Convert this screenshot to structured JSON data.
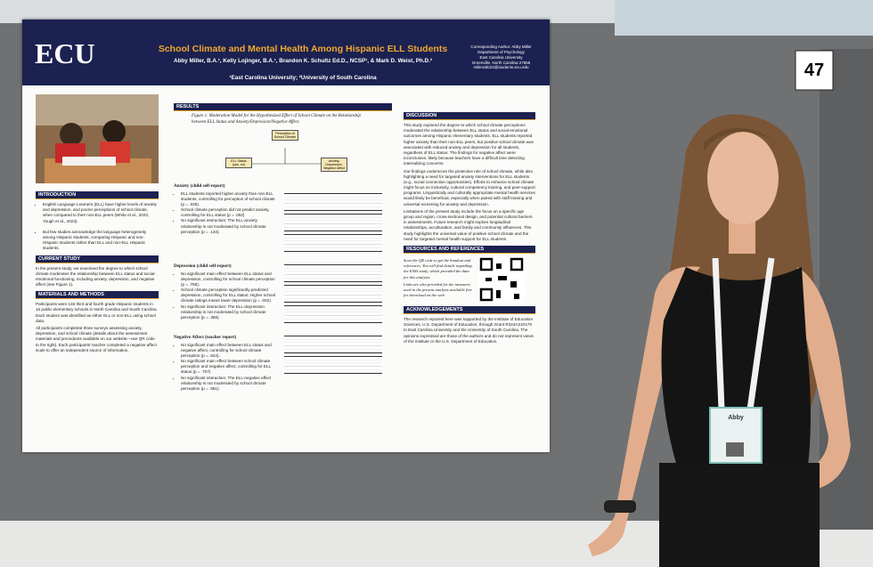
{
  "board_number": "47",
  "poster": {
    "logo": "ECU",
    "title": "School Climate and Mental Health Among Hispanic ELL Students",
    "authors": "Abby Miller, B.A.¹, Kelly Lojinger, B.A.¹, Brandon K. Schultz Ed.D., NCSP¹, & Mark D. Weist, Ph.D.²",
    "affiliations": "¹East Carolina University; ²University of South Carolina",
    "contact": [
      "Corresponding Author: Abby Miller",
      "Department of Psychology",
      "East Carolina University",
      "Greenville, North Carolina 27858",
      "millerabb23@students.ecu.edu"
    ],
    "introduction": {
      "heading": "INTRODUCTION",
      "bullets": [
        "English Language Learners (ELL) have higher levels of anxiety and depression, and poorer perceptions of school climate, when compared to their non-ELL peers (White et al., 2023; Yough et al., 2023).",
        "But few studies acknowledge the language heterogeneity among Hispanic students, comparing Hispanic and non-Hispanic students rather than ELL and non-ELL Hispanic students."
      ]
    },
    "current_study": {
      "heading": "CURRENT STUDY",
      "text": "In the present study, we examined the degree to which school climate moderates the relationship between ELL status and social-emotional functioning, including anxiety, depression, and negative affect (see Figure 1)."
    },
    "methods": {
      "heading": "MATERIALS AND METHODS",
      "paragraphs": [
        "Participants were 146 third and fourth grade Hispanic students in 16 public elementary schools in North Carolina and South Carolina. Each student was identified as either ELL or non-ELL using school data.",
        "All participants completed three surveys assessing anxiety, depression, and school climate (details about the assessment materials and procedures available on our website—use QR code to the right). Each participants' teacher completed a negative affect scale to offer an independent source of information."
      ]
    },
    "results": {
      "heading": "RESULTS",
      "figure_caption": "Figure 1. Moderation Model for the Hypothesized Effect of School Climate on the Relationship between ELL Status and Anxiety/Depression/Negative Affect.",
      "figure_nodes": [
        "Perception of School Climate",
        "ELL Status (yes, no)",
        "Anxiety, Depression, Negative Affect"
      ],
      "anxiety": {
        "heading": "Anxiety (child self-report)",
        "bullets": [
          "ELL students reported higher anxiety than non-ELL students, controlling for perception of school climate (p = .039).",
          "School climate perception did not predict anxiety, controlling for ELL status (p = .052)",
          "No significant interaction: The ELL-anxiety relationship is not moderated by school climate perception (p = .134)."
        ]
      },
      "depression": {
        "heading": "Depression (child self-report)",
        "bullets": [
          "No significant main effect between ELL status and depression, controlling for school climate perception (p = .756).",
          "School climate perception significantly predicted depression, controlling for ELL status: Higher school climate ratings meant lower depression (p = .002).",
          "No significant interaction: The ELL-depression relationship is not moderated by school climate perception (p = .369)."
        ]
      },
      "negative_affect": {
        "heading": "Negative Affect (teacher report)",
        "bullets": [
          "No significant main effect between ELL status and negative affect, controlling for school climate perception (p = .624).",
          "No significant main effect between school climate perception and negative affect, controlling for ELL status (p = .707).",
          "No significant interaction: The ELL-negative affect relationship is not moderated by school climate perception (p = .551)."
        ]
      }
    },
    "discussion": {
      "heading": "DISCUSSION",
      "paragraphs": [
        "This study explored the degree to which school climate perceptions moderated the relationship between ELL status and social-emotional outcomes among Hispanic elementary students. ELL students reported higher anxiety than their non-ELL peers, but positive school climate was associated with reduced anxiety and depression for all students, regardless of ELL status. The findings for negative affect were inconclusive, likely because teachers have a difficult time detecting internalizing concerns.",
        "Our findings underscore the protective role of school climate, while also highlighting a need for targeted anxiety interventions for ELL students (e.g., social connection opportunities). Efforts to enhance school climate might focus on inclusivity, cultural competency training, and peer-support programs. Linguistically and culturally appropriate mental health services would likely be beneficial, especially when paired with staff training and universal screening for anxiety and depression.",
        "Limitations of the present study include the focus on a specific age group and region, cross-sectional design, and potential cultural barriers in assessments. Future research might explore longitudinal relationships, acculturation, and family and community influences. This study highlights the universal value of positive school climate and the need for targeted mental health support for ELL students."
      ]
    },
    "resources": {
      "heading": "RESOURCES AND REFERENCES",
      "paragraphs": [
        "Scan the QR code to get the handout and references. You will find details regarding the ESSS study, which provided the data for this analysis.",
        "Links are also provided for the measures used in the present analysis available free for download on the web."
      ]
    },
    "acknowledgements": {
      "heading": "ACKNOWLEDGEMENTS",
      "text": "The research reported here was supported by the Institute of Education Sciences, U.S. Department of Education, through Grant R324A210179 to East Carolina University and the University of South Carolina. The opinions expressed are those of the authors and do not represent views of the Institute or the U.S. Department of Education."
    }
  },
  "badge": {
    "name": "Abby"
  }
}
